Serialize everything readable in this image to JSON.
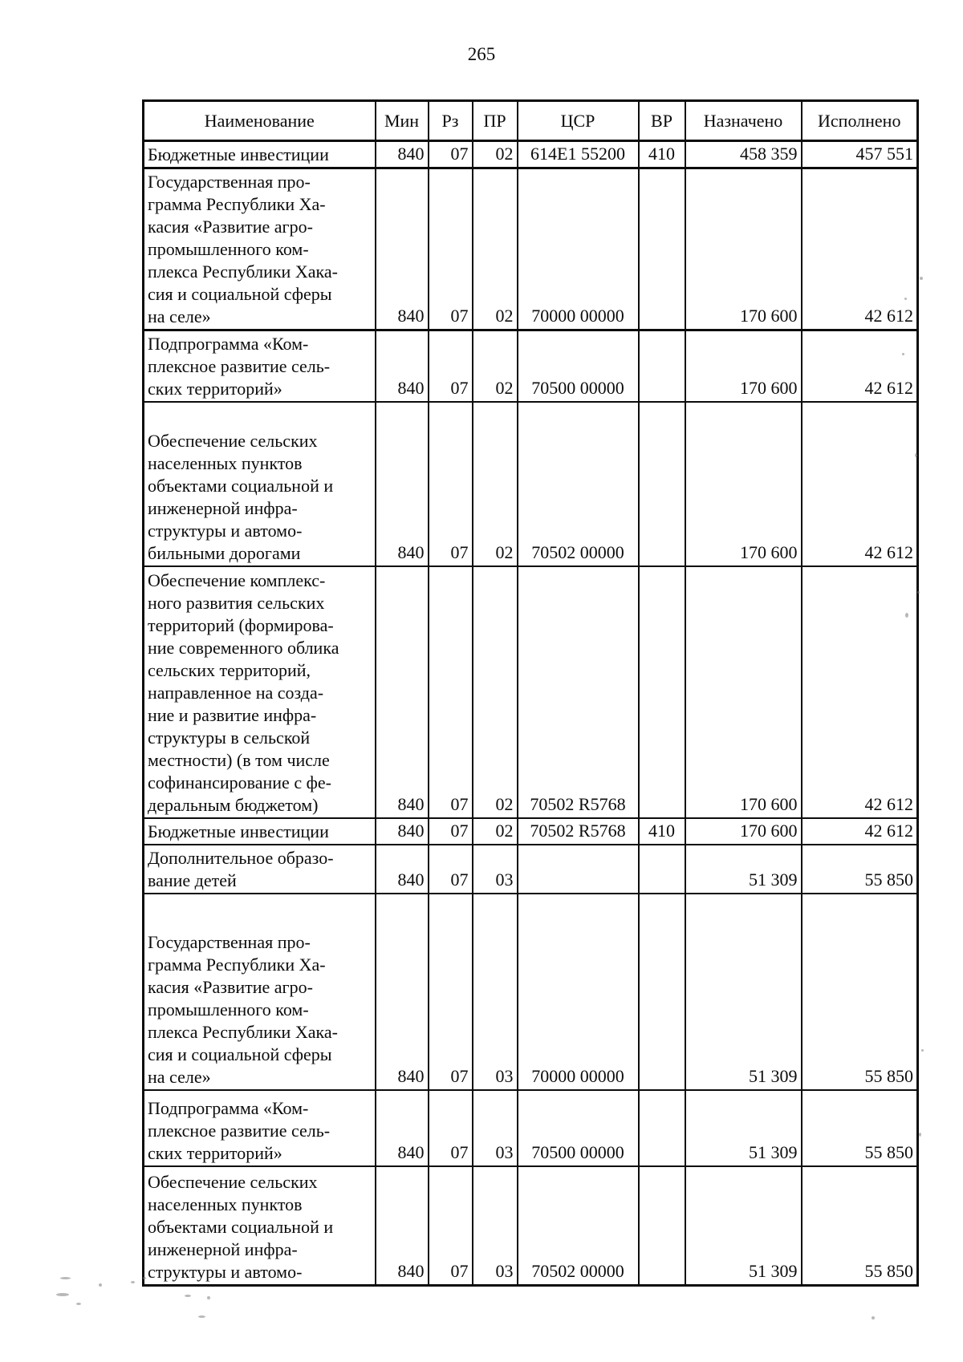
{
  "page": {
    "number": "265"
  },
  "table": {
    "headers": [
      "Наименование",
      "Мин",
      "Рз",
      "ПР",
      "ЦСР",
      "ВР",
      "Назначено",
      "Исполнено"
    ],
    "rows": [
      {
        "name_lines": [
          "Бюджетные инвестиции"
        ],
        "min": "840",
        "rz": "07",
        "pr": "02",
        "csr": "614Е1 55200",
        "vr": "410",
        "assigned": "458 359",
        "executed": "457 551"
      },
      {
        "name_lines": [
          "Государственная про-",
          "грамма Республики Ха-",
          "касия «Развитие агро-",
          "промышленного ком-",
          "плекса Республики Хака-",
          "сия и социальной сферы",
          "на селе»"
        ],
        "min": "840",
        "rz": "07",
        "pr": "02",
        "csr": "70000 00000",
        "vr": "",
        "assigned": "170 600",
        "executed": "42 612"
      },
      {
        "name_lines": [
          "Подпрограмма «Ком-",
          "плексное развитие сель-",
          "ских территорий»"
        ],
        "min": "840",
        "rz": "07",
        "pr": "02",
        "csr": "70500 00000",
        "vr": "",
        "assigned": "170 600",
        "executed": "42 612"
      },
      {
        "name_lines": [
          "Обеспечение сельских",
          "населенных пунктов",
          "объектами социальной и",
          "инженерной инфра-",
          "структуры и автомо-",
          "бильными дорогами"
        ],
        "min": "840",
        "rz": "07",
        "pr": "02",
        "csr": "70502 00000",
        "vr": "",
        "assigned": "170 600",
        "executed": "42 612"
      },
      {
        "name_lines": [
          "Обеспечение комплекс-",
          "ного развития сельских",
          "территорий (формирова-",
          "ние современного облика",
          "сельских территорий,",
          "направленное на созда-",
          "ние и развитие инфра-",
          "структуры в сельской",
          "местности) (в том числе",
          "софинансирование с фе-",
          "деральным бюджетом)"
        ],
        "min": "840",
        "rz": "07",
        "pr": "02",
        "csr": "70502 R5768",
        "vr": "",
        "assigned": "170 600",
        "executed": "42 612"
      },
      {
        "name_lines": [
          "Бюджетные инвестиции"
        ],
        "min": "840",
        "rz": "07",
        "pr": "02",
        "csr": "70502 R5768",
        "vr": "410",
        "assigned": "170 600",
        "executed": "42 612"
      },
      {
        "name_lines": [
          "Дополнительное образо-",
          "вание детей"
        ],
        "min": "840",
        "rz": "07",
        "pr": "03",
        "csr": "",
        "vr": "",
        "assigned": "51 309",
        "executed": "55 850"
      },
      {
        "name_lines": [
          "Государственная про-",
          "грамма Республики Ха-",
          "касия «Развитие агро-",
          "промышленного ком-",
          "плекса Республики Хака-",
          "сия и социальной сферы",
          "на селе»"
        ],
        "min": "840",
        "rz": "07",
        "pr": "03",
        "csr": "70000 00000",
        "vr": "",
        "assigned": "51 309",
        "executed": "55 850"
      },
      {
        "name_lines": [
          "Подпрограмма «Ком-",
          "плексное развитие сель-",
          "ских территорий»"
        ],
        "min": "840",
        "rz": "07",
        "pr": "03",
        "csr": "70500 00000",
        "vr": "",
        "assigned": "51 309",
        "executed": "55 850"
      },
      {
        "name_lines": [
          "Обеспечение сельских",
          "населенных пунктов",
          "объектами социальной и",
          "инженерной инфра-",
          "структуры и автомо-"
        ],
        "min": "840",
        "rz": "07",
        "pr": "03",
        "csr": "70502 00000",
        "vr": "",
        "assigned": "51 309",
        "executed": "55 850"
      }
    ]
  }
}
